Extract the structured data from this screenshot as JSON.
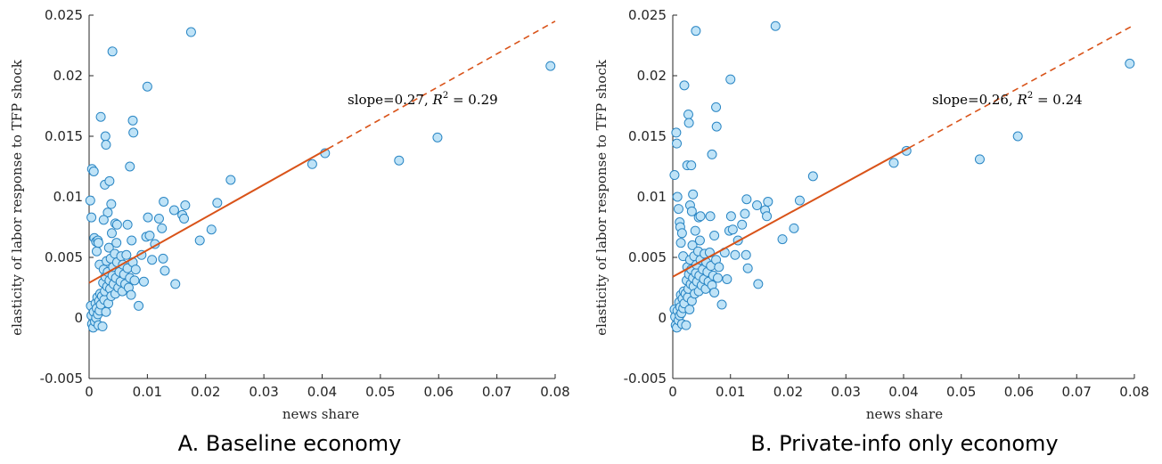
{
  "colors": {
    "marker_fill": "#bfe3f7",
    "marker_edge": "#2a86c4",
    "fit_line": "#d95319",
    "axis": "#262626"
  },
  "chart_data": [
    {
      "type": "scatter",
      "caption": "A. Baseline economy",
      "xlabel": "news share",
      "ylabel": "elasticity of labor response to TFP shock",
      "xlim": [
        0,
        0.08
      ],
      "ylim": [
        -0.005,
        0.025
      ],
      "xticks": [
        "0",
        "0.01",
        "0.02",
        "0.03",
        "0.04",
        "0.05",
        "0.06",
        "0.07",
        "0.08"
      ],
      "yticks": [
        "-0.005",
        "0",
        "0.005",
        "0.01",
        "0.015",
        "0.02",
        "0.025"
      ],
      "grid": false,
      "annotation": {
        "slope_text": "slope=0.27, ",
        "r2_text": "R",
        "r2_exp": "2",
        "r2_value": " = 0.29"
      },
      "fit": {
        "slope": 0.27,
        "intercept": 0.0029,
        "solid_until": 0.041
      },
      "points": [
        [
          0.0002,
          0.0097
        ],
        [
          0.0004,
          0.0083
        ],
        [
          0.0005,
          0.0123
        ],
        [
          0.0008,
          0.0121
        ],
        [
          0.0009,
          0.0066
        ],
        [
          0.0012,
          0.0063
        ],
        [
          0.0013,
          0.0055
        ],
        [
          0.0015,
          0.0064
        ],
        [
          0.0016,
          0.0062
        ],
        [
          0.0018,
          0.0044
        ],
        [
          0.0003,
          0.001
        ],
        [
          0.0004,
          0.0002
        ],
        [
          0.0005,
          -0.0005
        ],
        [
          0.0007,
          -0.0008
        ],
        [
          0.0008,
          0.0005
        ],
        [
          0.001,
          -0.0003
        ],
        [
          0.0011,
          0.0012
        ],
        [
          0.0012,
          0.0
        ],
        [
          0.0013,
          0.0008
        ],
        [
          0.0014,
          0.0017
        ],
        [
          0.0015,
          0.0003
        ],
        [
          0.0016,
          -0.0006
        ],
        [
          0.0017,
          0.0014
        ],
        [
          0.0018,
          0.0006
        ],
        [
          0.0019,
          0.002
        ],
        [
          0.002,
          0.0011
        ],
        [
          0.0022,
          0.0018
        ],
        [
          0.0023,
          -0.0007
        ],
        [
          0.0024,
          0.0029
        ],
        [
          0.0025,
          0.004
        ],
        [
          0.0026,
          0.0015
        ],
        [
          0.0027,
          0.0022
        ],
        [
          0.0028,
          0.0034
        ],
        [
          0.0029,
          0.0005
        ],
        [
          0.003,
          0.0047
        ],
        [
          0.0031,
          0.0026
        ],
        [
          0.0032,
          0.0038
        ],
        [
          0.0033,
          0.0012
        ],
        [
          0.0034,
          0.0058
        ],
        [
          0.0035,
          0.0031
        ],
        [
          0.0036,
          0.0024
        ],
        [
          0.0037,
          0.0049
        ],
        [
          0.0038,
          0.0018
        ],
        [
          0.0039,
          0.007
        ],
        [
          0.004,
          0.0035
        ],
        [
          0.0041,
          0.0042
        ],
        [
          0.0042,
          0.0028
        ],
        [
          0.0044,
          0.0053
        ],
        [
          0.0045,
          0.002
        ],
        [
          0.0046,
          0.0033
        ],
        [
          0.0047,
          0.0062
        ],
        [
          0.0048,
          0.0046
        ],
        [
          0.005,
          0.0025
        ],
        [
          0.0052,
          0.0038
        ],
        [
          0.0054,
          0.003
        ],
        [
          0.0055,
          0.0051
        ],
        [
          0.0057,
          0.0022
        ],
        [
          0.0058,
          0.0044
        ],
        [
          0.006,
          0.0036
        ],
        [
          0.0062,
          0.0028
        ],
        [
          0.0064,
          0.0052
        ],
        [
          0.0066,
          0.0041
        ],
        [
          0.0068,
          0.0025
        ],
        [
          0.007,
          0.0033
        ],
        [
          0.0072,
          0.0019
        ],
        [
          0.0075,
          0.0046
        ],
        [
          0.0078,
          0.0031
        ],
        [
          0.008,
          0.004
        ],
        [
          0.0085,
          0.001
        ],
        [
          0.009,
          0.0052
        ],
        [
          0.0094,
          0.003
        ],
        [
          0.002,
          0.0166
        ],
        [
          0.0028,
          0.015
        ],
        [
          0.0029,
          0.0143
        ],
        [
          0.0027,
          0.011
        ],
        [
          0.0035,
          0.0113
        ],
        [
          0.004,
          0.022
        ],
        [
          0.0032,
          0.0087
        ],
        [
          0.0025,
          0.0081
        ],
        [
          0.0038,
          0.0094
        ],
        [
          0.0045,
          0.0078
        ],
        [
          0.0048,
          0.0077
        ],
        [
          0.007,
          0.0125
        ],
        [
          0.0075,
          0.0163
        ],
        [
          0.0076,
          0.0153
        ],
        [
          0.0066,
          0.0077
        ],
        [
          0.0073,
          0.0064
        ],
        [
          0.01,
          0.0191
        ],
        [
          0.0101,
          0.0083
        ],
        [
          0.0098,
          0.0067
        ],
        [
          0.0104,
          0.0068
        ],
        [
          0.0113,
          0.0061
        ],
        [
          0.0108,
          0.0048
        ],
        [
          0.012,
          0.0082
        ],
        [
          0.0125,
          0.0074
        ],
        [
          0.0128,
          0.0096
        ],
        [
          0.0127,
          0.0049
        ],
        [
          0.013,
          0.0039
        ],
        [
          0.0146,
          0.0089
        ],
        [
          0.0148,
          0.0028
        ],
        [
          0.016,
          0.0085
        ],
        [
          0.0163,
          0.0082
        ],
        [
          0.0165,
          0.0093
        ],
        [
          0.0175,
          0.0236
        ],
        [
          0.019,
          0.0064
        ],
        [
          0.021,
          0.0073
        ],
        [
          0.022,
          0.0095
        ],
        [
          0.0243,
          0.0114
        ],
        [
          0.0383,
          0.0127
        ],
        [
          0.0405,
          0.0136
        ],
        [
          0.0532,
          0.013
        ],
        [
          0.0598,
          0.0149
        ],
        [
          0.0792,
          0.0208
        ]
      ]
    },
    {
      "type": "scatter",
      "caption": "B. Private-info only economy",
      "xlabel": "news share",
      "ylabel": "elasticity of labor response to TFP shock",
      "xlim": [
        0,
        0.08
      ],
      "ylim": [
        -0.005,
        0.025
      ],
      "xticks": [
        "0",
        "0.01",
        "0.02",
        "0.03",
        "0.04",
        "0.05",
        "0.06",
        "0.07",
        "0.08"
      ],
      "yticks": [
        "-0.005",
        "0",
        "0.005",
        "0.01",
        "0.015",
        "0.02",
        "0.025"
      ],
      "grid": false,
      "annotation": {
        "slope_text": "slope=0.26, ",
        "r2_text": "R",
        "r2_exp": "2",
        "r2_value": " = 0.24"
      },
      "fit": {
        "slope": 0.26,
        "intercept": 0.0034,
        "solid_until": 0.041
      },
      "points": [
        [
          0.0003,
          0.0118
        ],
        [
          0.0006,
          0.0153
        ],
        [
          0.0007,
          0.0144
        ],
        [
          0.0008,
          0.01
        ],
        [
          0.001,
          0.009
        ],
        [
          0.0012,
          0.0079
        ],
        [
          0.0013,
          0.0075
        ],
        [
          0.0014,
          0.0062
        ],
        [
          0.0016,
          0.007
        ],
        [
          0.0018,
          0.0051
        ],
        [
          0.0003,
          0.0007
        ],
        [
          0.0004,
          0.0001
        ],
        [
          0.0005,
          -0.0006
        ],
        [
          0.0007,
          -0.0008
        ],
        [
          0.0008,
          0.0006
        ],
        [
          0.001,
          -0.0002
        ],
        [
          0.0011,
          0.0013
        ],
        [
          0.0012,
          0.0002
        ],
        [
          0.0013,
          0.0009
        ],
        [
          0.0014,
          0.0019
        ],
        [
          0.0015,
          0.0004
        ],
        [
          0.0016,
          -0.0005
        ],
        [
          0.0017,
          0.0016
        ],
        [
          0.0018,
          0.0008
        ],
        [
          0.0019,
          0.0022
        ],
        [
          0.002,
          0.0012
        ],
        [
          0.0022,
          0.002
        ],
        [
          0.0023,
          -0.0006
        ],
        [
          0.0024,
          0.0031
        ],
        [
          0.0025,
          0.0042
        ],
        [
          0.0026,
          0.0017
        ],
        [
          0.0027,
          0.0024
        ],
        [
          0.0028,
          0.0036
        ],
        [
          0.0029,
          0.0007
        ],
        [
          0.003,
          0.0048
        ],
        [
          0.0031,
          0.0028
        ],
        [
          0.0032,
          0.004
        ],
        [
          0.0033,
          0.0014
        ],
        [
          0.0034,
          0.006
        ],
        [
          0.0035,
          0.0033
        ],
        [
          0.0036,
          0.0026
        ],
        [
          0.0037,
          0.0051
        ],
        [
          0.0038,
          0.002
        ],
        [
          0.0039,
          0.0072
        ],
        [
          0.004,
          0.0037
        ],
        [
          0.0041,
          0.0044
        ],
        [
          0.0042,
          0.003
        ],
        [
          0.0044,
          0.0055
        ],
        [
          0.0045,
          0.0022
        ],
        [
          0.0046,
          0.0035
        ],
        [
          0.0047,
          0.0064
        ],
        [
          0.0048,
          0.0048
        ],
        [
          0.005,
          0.0027
        ],
        [
          0.0052,
          0.004
        ],
        [
          0.0054,
          0.0032
        ],
        [
          0.0055,
          0.0053
        ],
        [
          0.0057,
          0.0024
        ],
        [
          0.0058,
          0.0046
        ],
        [
          0.006,
          0.0038
        ],
        [
          0.0062,
          0.003
        ],
        [
          0.0064,
          0.0054
        ],
        [
          0.0066,
          0.0043
        ],
        [
          0.0068,
          0.0027
        ],
        [
          0.007,
          0.0035
        ],
        [
          0.0072,
          0.0021
        ],
        [
          0.0075,
          0.0048
        ],
        [
          0.0078,
          0.0033
        ],
        [
          0.008,
          0.0042
        ],
        [
          0.0085,
          0.0011
        ],
        [
          0.009,
          0.0054
        ],
        [
          0.0094,
          0.0032
        ],
        [
          0.002,
          0.0192
        ],
        [
          0.0027,
          0.0168
        ],
        [
          0.0028,
          0.0161
        ],
        [
          0.0025,
          0.0126
        ],
        [
          0.0032,
          0.0126
        ],
        [
          0.004,
          0.0237
        ],
        [
          0.0035,
          0.0102
        ],
        [
          0.003,
          0.0093
        ],
        [
          0.0033,
          0.0088
        ],
        [
          0.0045,
          0.0083
        ],
        [
          0.0048,
          0.0084
        ],
        [
          0.0068,
          0.0135
        ],
        [
          0.0075,
          0.0174
        ],
        [
          0.0076,
          0.0158
        ],
        [
          0.0065,
          0.0084
        ],
        [
          0.0072,
          0.0068
        ],
        [
          0.01,
          0.0197
        ],
        [
          0.0101,
          0.0084
        ],
        [
          0.0098,
          0.0072
        ],
        [
          0.0104,
          0.0073
        ],
        [
          0.0113,
          0.0064
        ],
        [
          0.0108,
          0.0052
        ],
        [
          0.012,
          0.0077
        ],
        [
          0.0125,
          0.0086
        ],
        [
          0.0128,
          0.0098
        ],
        [
          0.0127,
          0.0052
        ],
        [
          0.013,
          0.0041
        ],
        [
          0.0146,
          0.0093
        ],
        [
          0.0148,
          0.0028
        ],
        [
          0.016,
          0.0089
        ],
        [
          0.0163,
          0.0084
        ],
        [
          0.0165,
          0.0096
        ],
        [
          0.0178,
          0.0241
        ],
        [
          0.019,
          0.0065
        ],
        [
          0.021,
          0.0074
        ],
        [
          0.022,
          0.0097
        ],
        [
          0.0243,
          0.0117
        ],
        [
          0.0383,
          0.0128
        ],
        [
          0.0405,
          0.0138
        ],
        [
          0.0532,
          0.0131
        ],
        [
          0.0598,
          0.015
        ],
        [
          0.0792,
          0.021
        ]
      ]
    }
  ]
}
